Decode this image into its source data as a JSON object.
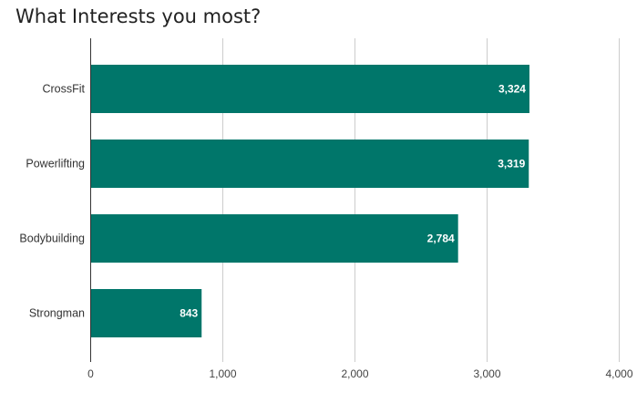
{
  "chart_data": {
    "type": "bar",
    "orientation": "horizontal",
    "title": "What Interests you most?",
    "categories": [
      "CrossFit",
      "Powerlifting",
      "Bodybuilding",
      "Strongman"
    ],
    "values": [
      3324,
      3319,
      2784,
      843
    ],
    "value_labels": [
      "3,324",
      "3,319",
      "2,784",
      "843"
    ],
    "xlim": [
      0,
      4000
    ],
    "xticks": [
      0,
      1000,
      2000,
      3000,
      4000
    ],
    "xtick_labels": [
      "0",
      "1,000",
      "2,000",
      "3,000",
      "4,000"
    ],
    "xlabel": "",
    "ylabel": "",
    "grid": true,
    "legend": "none",
    "bar_color": "#00766a"
  }
}
